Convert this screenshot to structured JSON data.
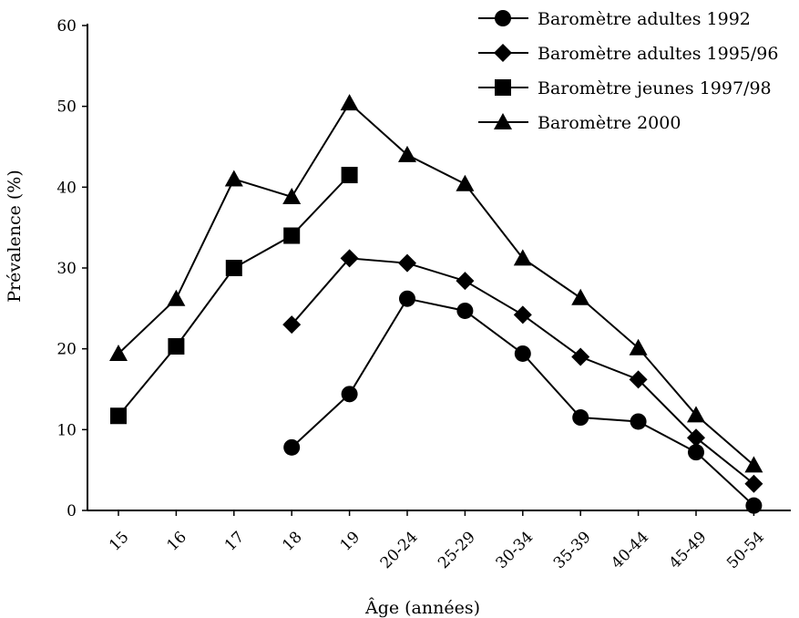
{
  "chart_data": {
    "type": "line",
    "xlabel": "Âge (années)",
    "ylabel": "Prévalence (%)",
    "ylim": [
      0,
      60
    ],
    "yticks": [
      0,
      10,
      20,
      30,
      40,
      50,
      60
    ],
    "categories": [
      "15",
      "16",
      "17",
      "18",
      "19",
      "20-24",
      "25-29",
      "30-34",
      "35-39",
      "40-44",
      "45-49",
      "50-54"
    ],
    "legend_position": "top-right",
    "grid": false,
    "series": [
      {
        "name": "Baromètre adultes 1992",
        "marker": "circle",
        "values": [
          null,
          null,
          null,
          7.8,
          14.4,
          26.2,
          24.7,
          19.4,
          11.5,
          11.0,
          7.2,
          0.6
        ]
      },
      {
        "name": "Baromètre adultes 1995/96",
        "marker": "diamond",
        "values": [
          null,
          null,
          null,
          23.0,
          31.2,
          30.6,
          28.4,
          24.2,
          19.0,
          16.2,
          9.0,
          3.3
        ]
      },
      {
        "name": "Baromètre jeunes 1997/98",
        "marker": "square",
        "values": [
          11.7,
          20.3,
          30.0,
          34.0,
          41.5,
          null,
          null,
          null,
          null,
          null,
          null,
          null
        ]
      },
      {
        "name": "Baromètre 2000",
        "marker": "triangle",
        "values": [
          19.4,
          26.2,
          41.0,
          38.8,
          50.4,
          44.0,
          40.4,
          31.2,
          26.3,
          20.1,
          11.8,
          5.6
        ]
      }
    ]
  }
}
